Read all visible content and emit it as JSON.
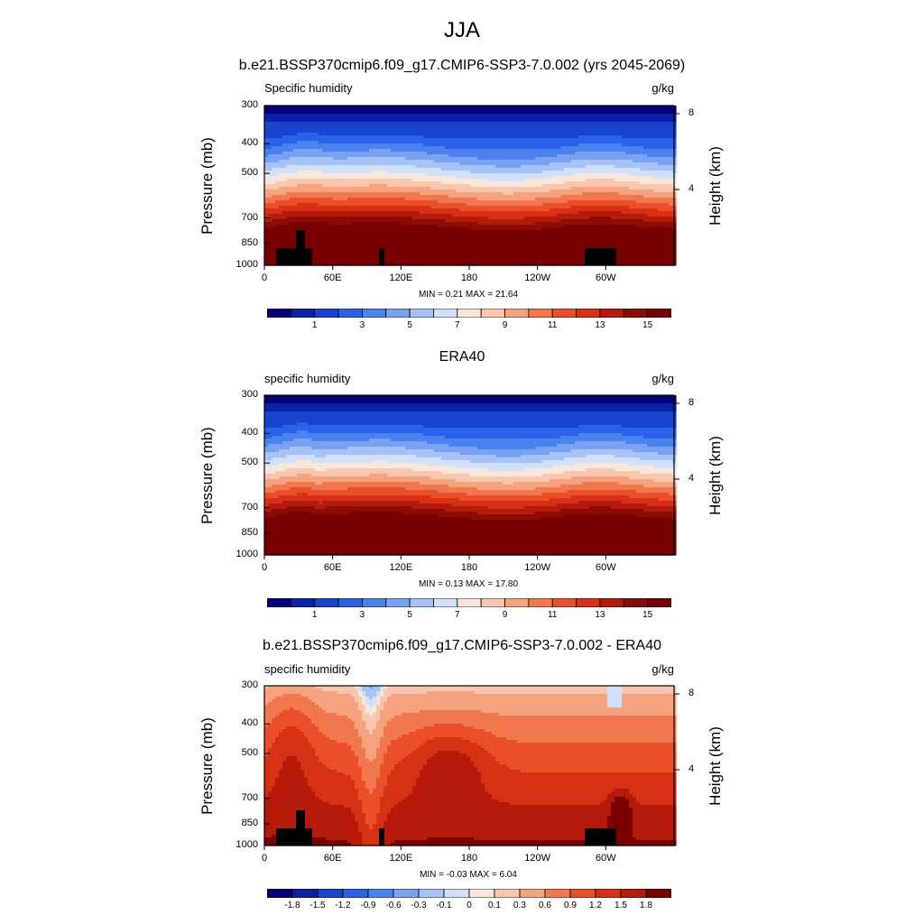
{
  "title": "JJA",
  "case_title": "b.e21.BSSP370cmip6.f09_g17.CMIP6-SSP3-7.0.002 (yrs 2045-2069)",
  "chart_data": [
    {
      "type": "heatmap",
      "title": "b.e21.BSSP370cmip6.f09_g17.CMIP6-SSP3-7.0.002 (yrs 2045-2069)",
      "left_string": "Specific humidity",
      "right_string": "g/kg",
      "ylabel": "Pressure (mb)",
      "ylabel_right": "Height (km)",
      "y_ticks": [
        "300",
        "400",
        "500",
        "700",
        "850",
        "1000"
      ],
      "y_tick_values": [
        300,
        400,
        500,
        700,
        850,
        1000
      ],
      "height_ticks": [
        "8",
        "4"
      ],
      "height_tick_values": [
        8,
        4
      ],
      "x_ticks": [
        "0",
        "60E",
        "120E",
        "180",
        "120W",
        "60W"
      ],
      "x_tick_values": [
        0,
        60,
        120,
        180,
        240,
        300
      ],
      "xlim": [
        0,
        360
      ],
      "ylim": [
        1000,
        300
      ],
      "min_max": "MIN =   0.21  MAX =  21.64",
      "colorbar_labels": [
        "1",
        "3",
        "5",
        "7",
        "9",
        "11",
        "13",
        "15"
      ],
      "colorbar_levels": [
        0.5,
        1,
        2,
        3,
        4,
        5,
        6,
        7,
        8,
        9,
        10,
        11,
        12,
        13,
        14,
        15
      ],
      "colormap": [
        "#00007a",
        "#0a23a6",
        "#1a43cf",
        "#2a61e8",
        "#4a82ef",
        "#7aa2f2",
        "#a6c2f6",
        "#cfe0fa",
        "#f8e6da",
        "#f7c7b0",
        "#f5a37e",
        "#f1774f",
        "#e9502a",
        "#d63015",
        "#b51a0b",
        "#8a0c04",
        "#7a0000"
      ]
    },
    {
      "type": "heatmap",
      "title": "ERA40",
      "left_string": "specific humidity",
      "right_string": "g/kg",
      "ylabel": "Pressure (mb)",
      "ylabel_right": "Height (km)",
      "y_ticks": [
        "300",
        "400",
        "500",
        "700",
        "850",
        "1000"
      ],
      "y_tick_values": [
        300,
        400,
        500,
        700,
        850,
        1000
      ],
      "height_ticks": [
        "8",
        "4"
      ],
      "height_tick_values": [
        8,
        4
      ],
      "x_ticks": [
        "0",
        "60E",
        "120E",
        "180",
        "120W",
        "60W"
      ],
      "x_tick_values": [
        0,
        60,
        120,
        180,
        240,
        300
      ],
      "xlim": [
        0,
        360
      ],
      "ylim": [
        1000,
        300
      ],
      "min_max": "MIN =   0.13  MAX =  17.80",
      "colorbar_labels": [
        "1",
        "3",
        "5",
        "7",
        "9",
        "11",
        "13",
        "15"
      ],
      "colorbar_levels": [
        0.5,
        1,
        2,
        3,
        4,
        5,
        6,
        7,
        8,
        9,
        10,
        11,
        12,
        13,
        14,
        15
      ],
      "colormap": [
        "#00007a",
        "#0a23a6",
        "#1a43cf",
        "#2a61e8",
        "#4a82ef",
        "#7aa2f2",
        "#a6c2f6",
        "#cfe0fa",
        "#f8e6da",
        "#f7c7b0",
        "#f5a37e",
        "#f1774f",
        "#e9502a",
        "#d63015",
        "#b51a0b",
        "#8a0c04",
        "#7a0000"
      ]
    },
    {
      "type": "heatmap",
      "title": "b.e21.BSSP370cmip6.f09_g17.CMIP6-SSP3-7.0.002 - ERA40",
      "left_string": "specific humidity",
      "right_string": "g/kg",
      "ylabel": "Pressure (mb)",
      "ylabel_right": "Height (km)",
      "y_ticks": [
        "300",
        "400",
        "500",
        "700",
        "850",
        "1000"
      ],
      "y_tick_values": [
        300,
        400,
        500,
        700,
        850,
        1000
      ],
      "height_ticks": [
        "8",
        "4"
      ],
      "height_tick_values": [
        8,
        4
      ],
      "x_ticks": [
        "0",
        "60E",
        "120E",
        "180",
        "120W",
        "60W"
      ],
      "x_tick_values": [
        0,
        60,
        120,
        180,
        240,
        300
      ],
      "xlim": [
        0,
        360
      ],
      "ylim": [
        1000,
        300
      ],
      "min_max": "MIN =  -0.03  MAX =   6.04",
      "colorbar_labels": [
        "-1.8",
        "-1.5",
        "-1.2",
        "-0.9",
        "-0.6",
        "-0.3",
        "-0.1",
        "0",
        "0.1",
        "0.3",
        "0.6",
        "0.9",
        "1.2",
        "1.5",
        "1.8"
      ],
      "colorbar_levels": [
        -1.8,
        -1.5,
        -1.2,
        -0.9,
        -0.6,
        -0.3,
        -0.1,
        0,
        0.1,
        0.3,
        0.6,
        0.9,
        1.2,
        1.5,
        1.8
      ],
      "colormap": [
        "#00007a",
        "#0a23a6",
        "#1a43cf",
        "#2a61e8",
        "#4a82ef",
        "#7aa2f2",
        "#a6c2f6",
        "#cfe0fa",
        "#f8e6da",
        "#f7c7b0",
        "#f5a37e",
        "#f1774f",
        "#e9502a",
        "#d63015",
        "#b51a0b",
        "#7a0000"
      ]
    }
  ]
}
